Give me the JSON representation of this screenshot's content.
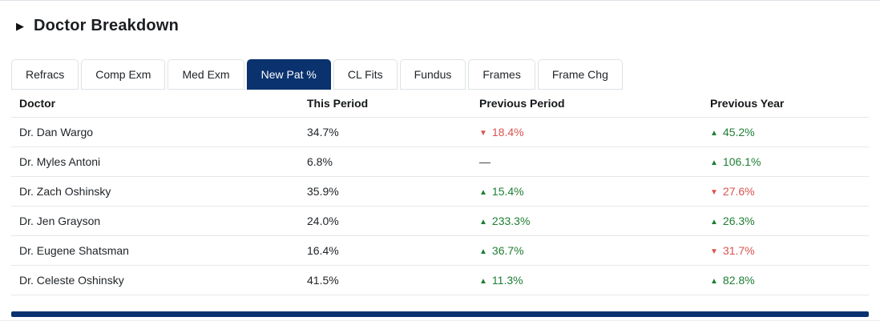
{
  "header": {
    "title": "Doctor Breakdown"
  },
  "tabs": {
    "items": [
      {
        "label": "Refracs",
        "active": false
      },
      {
        "label": "Comp Exm",
        "active": false
      },
      {
        "label": "Med Exm",
        "active": false
      },
      {
        "label": "New Pat %",
        "active": true
      },
      {
        "label": "CL Fits",
        "active": false
      },
      {
        "label": "Fundus",
        "active": false
      },
      {
        "label": "Frames",
        "active": false
      },
      {
        "label": "Frame Chg",
        "active": false
      }
    ]
  },
  "table": {
    "columns": [
      "Doctor",
      "This Period",
      "Previous Period",
      "Previous Year"
    ],
    "rows": [
      {
        "doctor": "Dr. Dan Wargo",
        "this_period": "34.7%",
        "previous_period": {
          "value": "18.4%",
          "direction": "down"
        },
        "previous_year": {
          "value": "45.2%",
          "direction": "up"
        }
      },
      {
        "doctor": "Dr. Myles Antoni",
        "this_period": "6.8%",
        "previous_period": {
          "value": "—",
          "direction": "none"
        },
        "previous_year": {
          "value": "106.1%",
          "direction": "up"
        }
      },
      {
        "doctor": "Dr. Zach Oshinsky",
        "this_period": "35.9%",
        "previous_period": {
          "value": "15.4%",
          "direction": "up"
        },
        "previous_year": {
          "value": "27.6%",
          "direction": "down"
        }
      },
      {
        "doctor": "Dr. Jen Grayson",
        "this_period": "24.0%",
        "previous_period": {
          "value": "233.3%",
          "direction": "up"
        },
        "previous_year": {
          "value": "26.3%",
          "direction": "up"
        }
      },
      {
        "doctor": "Dr. Eugene Shatsman",
        "this_period": "16.4%",
        "previous_period": {
          "value": "36.7%",
          "direction": "up"
        },
        "previous_year": {
          "value": "31.7%",
          "direction": "down"
        }
      },
      {
        "doctor": "Dr. Celeste Oshinsky",
        "this_period": "41.5%",
        "previous_period": {
          "value": "11.3%",
          "direction": "up"
        },
        "previous_year": {
          "value": "82.8%",
          "direction": "up"
        }
      }
    ]
  },
  "icons": {
    "collapse": "▶",
    "trend_up": "▲",
    "trend_down": "▼"
  },
  "colors": {
    "trend_up": "#1e7e34",
    "trend_down": "#d9534f",
    "active_tab": "#0a326e",
    "bottom_bar": "#0a326e"
  }
}
